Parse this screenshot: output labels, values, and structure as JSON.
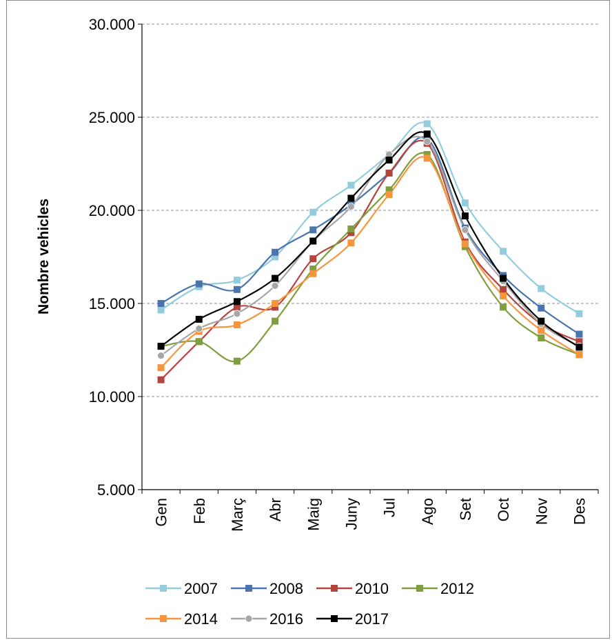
{
  "chart_data": {
    "type": "line",
    "ylabel": "Nombre vehicles",
    "xlabel": "",
    "categories": [
      "Gen",
      "Feb",
      "Març",
      "Abr",
      "Maig",
      "Juny",
      "Jul",
      "Ago",
      "Set",
      "Oct",
      "Nov",
      "Des"
    ],
    "ylim": [
      5000,
      30000
    ],
    "yticks": [
      5000,
      10000,
      15000,
      20000,
      25000,
      30000
    ],
    "ytick_labels": [
      "5.000",
      "10.000",
      "15.000",
      "20.000",
      "25.000",
      "30.000"
    ],
    "grid": "horizontal dashed",
    "legend_position": "bottom",
    "smooth": true,
    "series": [
      {
        "name": "2007",
        "color": "#93cddd",
        "marker": "square",
        "values": [
          14650,
          15900,
          16250,
          17500,
          19900,
          21350,
          23000,
          24650,
          20400,
          17800,
          15800,
          14450
        ]
      },
      {
        "name": "2008",
        "color": "#4a74ad",
        "marker": "square",
        "values": [
          15000,
          16050,
          15750,
          17750,
          18950,
          20300,
          22000,
          23850,
          19050,
          16500,
          14750,
          13350
        ]
      },
      {
        "name": "2010",
        "color": "#b3443e",
        "marker": "square",
        "values": [
          10900,
          12950,
          14800,
          14800,
          17400,
          18800,
          22000,
          23600,
          18300,
          15750,
          13900,
          12950
        ]
      },
      {
        "name": "2012",
        "color": "#7f9e3e",
        "marker": "square",
        "values": [
          12700,
          12950,
          11900,
          14050,
          16850,
          19000,
          21100,
          23000,
          18050,
          14800,
          13150,
          12250
        ]
      },
      {
        "name": "2014",
        "color": "#f7953d",
        "marker": "square",
        "values": [
          11550,
          13500,
          13850,
          15000,
          16600,
          18250,
          20850,
          22800,
          18200,
          15400,
          13550,
          12250
        ]
      },
      {
        "name": "2016",
        "color": "#a6a6a6",
        "marker": "circle",
        "values": [
          12200,
          13650,
          14450,
          15950,
          18350,
          20200,
          23000,
          23700,
          18950,
          16200,
          13900,
          12700
        ]
      },
      {
        "name": "2017",
        "color": "#000000",
        "marker": "square",
        "values": [
          12700,
          14150,
          15100,
          16350,
          18350,
          20650,
          22700,
          24100,
          19700,
          16350,
          14050,
          12650
        ]
      }
    ]
  }
}
